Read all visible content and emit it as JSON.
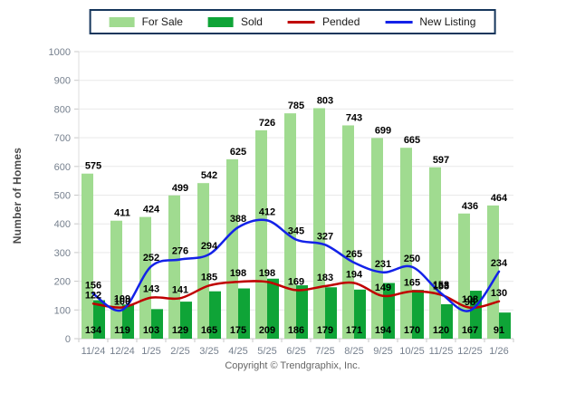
{
  "chart_data": {
    "type": "bar",
    "subtype": "grouped-bars-with-lines",
    "title": "",
    "xlabel": "",
    "ylabel": "Number of Homes",
    "ylim": [
      0,
      1000
    ],
    "yticks": [
      0,
      100,
      200,
      300,
      400,
      500,
      600,
      700,
      800,
      900,
      1000
    ],
    "grid": true,
    "legend_position": "top",
    "categories": [
      "11/24",
      "12/24",
      "1/25",
      "2/25",
      "3/25",
      "4/25",
      "5/25",
      "6/25",
      "7/25",
      "8/25",
      "9/25",
      "10/25",
      "11/25",
      "12/25",
      "1/26"
    ],
    "series": [
      {
        "name": "For Sale",
        "type": "bar",
        "color": "#A0DB90",
        "values": [
          575,
          411,
          424,
          499,
          542,
          625,
          726,
          785,
          803,
          743,
          699,
          665,
          597,
          436,
          464
        ]
      },
      {
        "name": "Sold",
        "type": "bar",
        "color": "#0FA437",
        "values": [
          134,
          119,
          103,
          129,
          165,
          175,
          209,
          186,
          179,
          171,
          194,
          170,
          120,
          167,
          91
        ]
      },
      {
        "name": "Pended",
        "type": "line",
        "color": "#C00000",
        "values": [
          122,
          109,
          143,
          141,
          185,
          198,
          198,
          169,
          183,
          194,
          149,
          165,
          153,
          108,
          130
        ]
      },
      {
        "name": "New Listing",
        "type": "line",
        "color": "#1322E8",
        "values": [
          156,
          100,
          252,
          276,
          294,
          388,
          412,
          345,
          327,
          265,
          231,
          250,
          158,
          98,
          234
        ]
      }
    ],
    "label_color": "#000000",
    "tick_color": "#76808E",
    "grid_color": "#E9E9E9",
    "axis_color": "#C9C9C9"
  },
  "footer": {
    "copyright": "Copyright © Trendgraphix, Inc."
  }
}
